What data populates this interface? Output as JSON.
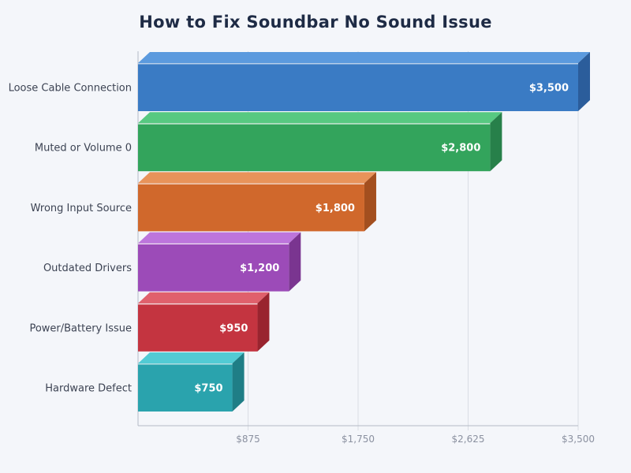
{
  "page": {
    "background": "#f4f6fa"
  },
  "title": "How to Fix Soundbar No Sound Issue",
  "title_color": "#1e2b45",
  "chart_data": {
    "type": "bar",
    "orientation": "horizontal",
    "title": "How to Fix Soundbar No Sound Issue",
    "categories": [
      "Loose Cable Connection",
      "Muted or Volume 0",
      "Wrong Input Source",
      "Outdated Drivers",
      "Power/Battery Issue",
      "Hardware Defect"
    ],
    "values": [
      3500,
      2800,
      1800,
      1200,
      950,
      750
    ],
    "value_labels": [
      "$3,500",
      "$2,800",
      "$1,800",
      "$1,200",
      "$950",
      "$750"
    ],
    "bar_colors": [
      {
        "front": "#3a7bc4",
        "top": "#5b9ade",
        "side": "#2b5d9b"
      },
      {
        "front": "#33a45c",
        "top": "#57c981",
        "side": "#27804a"
      },
      {
        "front": "#d0682c",
        "top": "#e8935a",
        "side": "#a34f1f"
      },
      {
        "front": "#9c4bb8",
        "top": "#bd75dc",
        "side": "#7a3590"
      },
      {
        "front": "#c43440",
        "top": "#e0606c",
        "side": "#99242f"
      },
      {
        "front": "#2aa3ad",
        "top": "#52cbd4",
        "side": "#1f7e86"
      }
    ],
    "xlim": [
      0,
      3500
    ],
    "x_ticks": [
      {
        "value": 875,
        "label": "$875"
      },
      {
        "value": 1750,
        "label": "$1,750"
      },
      {
        "value": 2625,
        "label": "$2,625"
      },
      {
        "value": 3500,
        "label": "$3,500"
      }
    ],
    "grid": true,
    "legend": "none",
    "style": {
      "category_label_color": "#3c4353",
      "value_label_color": "#ffffff",
      "tick_label_color": "#8b91a0",
      "gridline_color": "#dadde4",
      "axis_line_color": "#b4bac6"
    }
  }
}
